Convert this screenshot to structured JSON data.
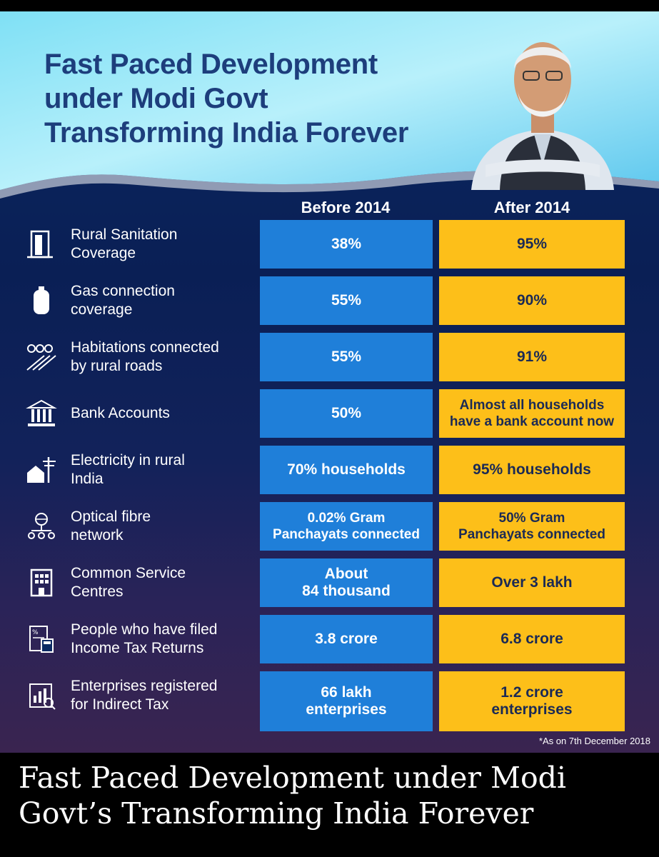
{
  "poster": {
    "headline": [
      "Fast Paced Development",
      "under Modi Govt",
      "Transforming India Forever"
    ],
    "column_before": "Before 2014",
    "column_after": "After 2014",
    "footnote": "*As on 7th December 2018",
    "rows": [
      {
        "icon": "toilet-door-icon",
        "label": [
          "Rural Sanitation",
          "Coverage"
        ],
        "before": [
          "38%"
        ],
        "after": [
          "95%"
        ]
      },
      {
        "icon": "gas-cylinder-icon",
        "label": [
          "Gas connection",
          "coverage"
        ],
        "before": [
          "55%"
        ],
        "after": [
          "90%"
        ]
      },
      {
        "icon": "rural-road-icon",
        "label": [
          "Habitations connected",
          "by rural roads"
        ],
        "before": [
          "55%"
        ],
        "after": [
          "91%"
        ]
      },
      {
        "icon": "bank-icon",
        "label": [
          "Bank Accounts"
        ],
        "before": [
          "50%"
        ],
        "after": [
          "Almost all households",
          "have a bank account now"
        ]
      },
      {
        "icon": "electric-house-icon",
        "label": [
          "Electricity in rural",
          "India"
        ],
        "before": [
          "70% households"
        ],
        "after": [
          "95% households"
        ]
      },
      {
        "icon": "network-globe-icon",
        "label": [
          "Optical fibre",
          "network"
        ],
        "before": [
          "0.02% Gram",
          "Panchayats connected"
        ],
        "after": [
          "50% Gram",
          "Panchayats connected"
        ]
      },
      {
        "icon": "building-icon",
        "label": [
          "Common Service",
          "Centres"
        ],
        "before": [
          "About",
          "84 thousand"
        ],
        "after": [
          "Over 3 lakh"
        ]
      },
      {
        "icon": "tax-document-icon",
        "label": [
          "People who have filed",
          "Income Tax Returns"
        ],
        "before": [
          "3.8 crore"
        ],
        "after": [
          "6.8 crore"
        ]
      },
      {
        "icon": "tax-chart-icon",
        "label": [
          "Enterprises registered",
          "for Indirect Tax"
        ],
        "before": [
          "66 lakh",
          "enterprises"
        ],
        "after": [
          "1.2 crore",
          "enterprises"
        ]
      }
    ]
  },
  "caption": "Fast Paced Development under Modi Govt’s Transforming India Forever"
}
